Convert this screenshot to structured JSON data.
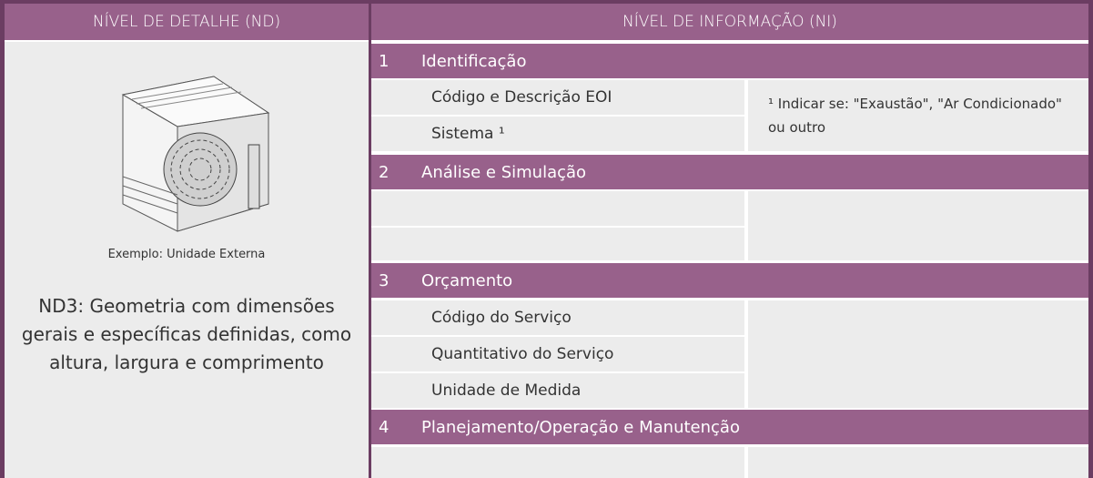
{
  "header": {
    "nd": "NÍVEL DE DETALHE (ND)",
    "ni": "NÍVEL DE INFORMAÇÃO (NI)"
  },
  "left": {
    "caption": "Exemplo: Unidade Externa",
    "description": "ND3: Geometria com dimensões gerais e específicas definidas, como altura, largura e comprimento"
  },
  "sections": [
    {
      "number": "1",
      "title": "Identificação",
      "rows": [
        "Código e Descrição EOI",
        "Sistema ¹"
      ],
      "note": "¹ Indicar se: \"Exaustão\", \"Ar Condicionado\" ou outro"
    },
    {
      "number": "2",
      "title": "Análise e Simulação"
    },
    {
      "number": "3",
      "title": "Orçamento",
      "rows": [
        "Código do Serviço",
        "Quantitativo do Serviço",
        "Unidade de Medida"
      ]
    },
    {
      "number": "4",
      "title": "Planejamento/Operação e Manutenção"
    }
  ]
}
